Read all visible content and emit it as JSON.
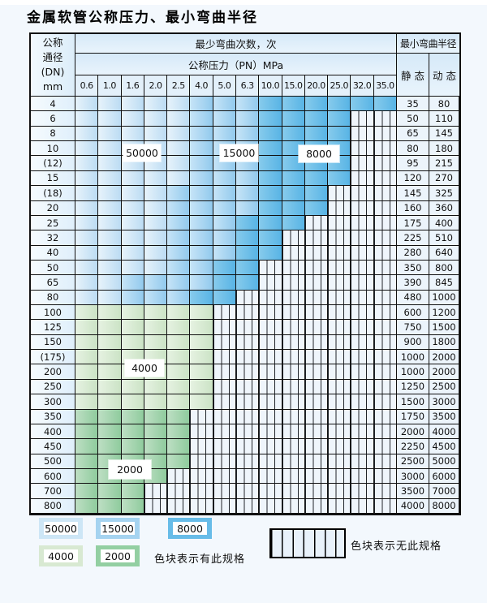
{
  "title": "金属软管公称压力、最小弯曲半径",
  "table": {
    "corner": {
      "line1": "公称",
      "line2": "通径",
      "line3": "(DN)",
      "line4": "mm"
    },
    "bend_cycles_header": "最少弯曲次数，次",
    "pressure_header": "公称压力（PN）MPa",
    "pressures": [
      "0.6",
      "1.0",
      "1.6",
      "2.0",
      "2.5",
      "4.0",
      "5.0",
      "6.3",
      "10.0",
      "15.0",
      "20.0",
      "25.0",
      "32.0",
      "35.0"
    ],
    "radius_header": "最小弯曲半径",
    "static_header": "静 态",
    "dynamic_header": "动 态",
    "cycles_by_shade": {
      "b1": "50000",
      "b2": "15000",
      "b3": "8000",
      "g1": "4000",
      "g2": "2000"
    },
    "overlays": [
      {
        "text": "50000"
      },
      {
        "text": "15000"
      },
      {
        "text": "8000"
      },
      {
        "text": "4000"
      },
      {
        "text": "2000"
      }
    ],
    "rows": [
      {
        "dn": "4",
        "static": "35",
        "dynamic": "80",
        "spans": [
          [
            "b1",
            5
          ],
          [
            "b2",
            3
          ],
          [
            "b3",
            6
          ]
        ]
      },
      {
        "dn": "6",
        "static": "50",
        "dynamic": "110",
        "spans": [
          [
            "b1",
            5
          ],
          [
            "b2",
            3
          ],
          [
            "b3",
            4
          ]
        ]
      },
      {
        "dn": "8",
        "static": "65",
        "dynamic": "145",
        "spans": [
          [
            "b1",
            5
          ],
          [
            "b2",
            3
          ],
          [
            "b3",
            4
          ]
        ]
      },
      {
        "dn": "10",
        "static": "80",
        "dynamic": "180",
        "spans": [
          [
            "b1",
            5
          ],
          [
            "b2",
            3
          ],
          [
            "b3",
            4
          ]
        ]
      },
      {
        "dn": "(12)",
        "static": "95",
        "dynamic": "215",
        "spans": [
          [
            "b1",
            5
          ],
          [
            "b2",
            3
          ],
          [
            "b3",
            4
          ]
        ]
      },
      {
        "dn": "15",
        "static": "120",
        "dynamic": "270",
        "spans": [
          [
            "b1",
            5
          ],
          [
            "b2",
            3
          ],
          [
            "b3",
            4
          ]
        ]
      },
      {
        "dn": "(18)",
        "static": "145",
        "dynamic": "325",
        "spans": [
          [
            "b1",
            4
          ],
          [
            "b2",
            4
          ],
          [
            "b3",
            3
          ]
        ]
      },
      {
        "dn": "20",
        "static": "160",
        "dynamic": "360",
        "spans": [
          [
            "b1",
            4
          ],
          [
            "b2",
            4
          ],
          [
            "b3",
            3
          ]
        ]
      },
      {
        "dn": "25",
        "static": "175",
        "dynamic": "400",
        "spans": [
          [
            "b1",
            4
          ],
          [
            "b2",
            3
          ],
          [
            "b3",
            3
          ]
        ]
      },
      {
        "dn": "32",
        "static": "225",
        "dynamic": "510",
        "spans": [
          [
            "b1",
            4
          ],
          [
            "b2",
            3
          ],
          [
            "b3",
            2
          ]
        ]
      },
      {
        "dn": "40",
        "static": "280",
        "dynamic": "640",
        "spans": [
          [
            "b1",
            4
          ],
          [
            "b2",
            3
          ],
          [
            "b3",
            2
          ]
        ]
      },
      {
        "dn": "50",
        "static": "350",
        "dynamic": "800",
        "spans": [
          [
            "b1",
            4
          ],
          [
            "b2",
            2
          ],
          [
            "b3",
            2
          ]
        ]
      },
      {
        "dn": "65",
        "static": "390",
        "dynamic": "845",
        "spans": [
          [
            "b1",
            2
          ],
          [
            "b2",
            4
          ],
          [
            "b3",
            2
          ]
        ]
      },
      {
        "dn": "80",
        "static": "480",
        "dynamic": "1000",
        "spans": [
          [
            "b1",
            2
          ],
          [
            "b2",
            3
          ],
          [
            "b3",
            2
          ]
        ]
      },
      {
        "dn": "100",
        "static": "600",
        "dynamic": "1200",
        "spans": [
          [
            "g1",
            6
          ]
        ]
      },
      {
        "dn": "125",
        "static": "750",
        "dynamic": "1500",
        "spans": [
          [
            "g1",
            6
          ]
        ]
      },
      {
        "dn": "150",
        "static": "900",
        "dynamic": "1800",
        "spans": [
          [
            "g1",
            6
          ]
        ]
      },
      {
        "dn": "(175)",
        "static": "1000",
        "dynamic": "2000",
        "spans": [
          [
            "g1",
            6
          ]
        ]
      },
      {
        "dn": "200",
        "static": "1000",
        "dynamic": "2000",
        "spans": [
          [
            "g1",
            6
          ]
        ]
      },
      {
        "dn": "250",
        "static": "1250",
        "dynamic": "2500",
        "spans": [
          [
            "g1",
            6
          ]
        ]
      },
      {
        "dn": "300",
        "static": "1500",
        "dynamic": "3000",
        "spans": [
          [
            "g1",
            6
          ]
        ]
      },
      {
        "dn": "350",
        "static": "1750",
        "dynamic": "3500",
        "spans": [
          [
            "g2",
            5
          ]
        ]
      },
      {
        "dn": "400",
        "static": "2000",
        "dynamic": "4000",
        "spans": [
          [
            "g2",
            5
          ]
        ]
      },
      {
        "dn": "450",
        "static": "2250",
        "dynamic": "4500",
        "spans": [
          [
            "g2",
            5
          ]
        ]
      },
      {
        "dn": "500",
        "static": "2500",
        "dynamic": "5000",
        "spans": [
          [
            "g2",
            5
          ]
        ]
      },
      {
        "dn": "600",
        "static": "3000",
        "dynamic": "6000",
        "spans": [
          [
            "g2",
            4
          ]
        ]
      },
      {
        "dn": "700",
        "static": "3500",
        "dynamic": "7000",
        "spans": [
          [
            "g2",
            3
          ]
        ]
      },
      {
        "dn": "800",
        "static": "4000",
        "dynamic": "8000",
        "spans": [
          [
            "g2",
            3
          ]
        ]
      }
    ]
  },
  "legend": {
    "items": [
      {
        "label": "50000",
        "shade": "b1"
      },
      {
        "label": "15000",
        "shade": "b2"
      },
      {
        "label": "8000",
        "shade": "b3"
      },
      {
        "label": "4000",
        "shade": "g1"
      },
      {
        "label": "2000",
        "shade": "g2"
      }
    ],
    "has_spec_text": "色块表示有此规格",
    "no_spec_text": "色块表示无此规格"
  },
  "colors": {
    "shade_50000": "#cde6f6",
    "shade_15000": "#a5d3f0",
    "shade_8000": "#68bce8",
    "shade_4000": "#d8e9d2",
    "shade_2000": "#93cfa2",
    "striped_bg": "#eff5fb",
    "border": "#111111",
    "page_bg": "#f3f8fd"
  }
}
